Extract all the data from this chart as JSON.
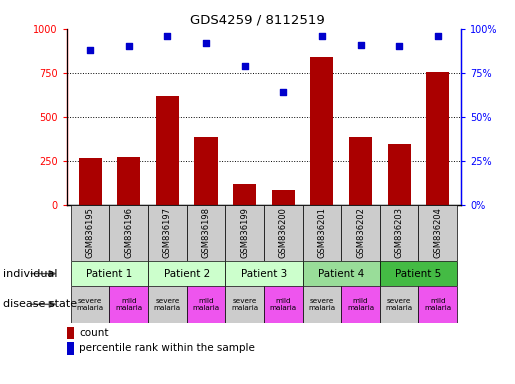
{
  "title": "GDS4259 / 8112519",
  "samples": [
    "GSM836195",
    "GSM836196",
    "GSM836197",
    "GSM836198",
    "GSM836199",
    "GSM836200",
    "GSM836201",
    "GSM836202",
    "GSM836203",
    "GSM836204"
  ],
  "bar_values": [
    270,
    275,
    620,
    390,
    120,
    85,
    840,
    390,
    345,
    755
  ],
  "percentile_values": [
    88,
    90,
    96,
    92,
    79,
    64,
    96,
    91,
    90,
    96
  ],
  "patients": [
    {
      "label": "Patient 1",
      "start": 0,
      "end": 2,
      "color": "#ccffcc"
    },
    {
      "label": "Patient 2",
      "start": 2,
      "end": 4,
      "color": "#ccffcc"
    },
    {
      "label": "Patient 3",
      "start": 4,
      "end": 6,
      "color": "#ccffcc"
    },
    {
      "label": "Patient 4",
      "start": 6,
      "end": 8,
      "color": "#99dd99"
    },
    {
      "label": "Patient 5",
      "start": 8,
      "end": 10,
      "color": "#44bb44"
    }
  ],
  "disease_states": [
    {
      "label": "severe\nmalaria",
      "col": 0,
      "color": "#cccccc"
    },
    {
      "label": "mild\nmalaria",
      "col": 1,
      "color": "#ee55ee"
    },
    {
      "label": "severe\nmalaria",
      "col": 2,
      "color": "#cccccc"
    },
    {
      "label": "mild\nmalaria",
      "col": 3,
      "color": "#ee55ee"
    },
    {
      "label": "severe\nmalaria",
      "col": 4,
      "color": "#cccccc"
    },
    {
      "label": "mild\nmalaria",
      "col": 5,
      "color": "#ee55ee"
    },
    {
      "label": "severe\nmalaria",
      "col": 6,
      "color": "#cccccc"
    },
    {
      "label": "mild\nmalaria",
      "col": 7,
      "color": "#ee55ee"
    },
    {
      "label": "severe\nmalaria",
      "col": 8,
      "color": "#cccccc"
    },
    {
      "label": "mild\nmalaria",
      "col": 9,
      "color": "#ee55ee"
    }
  ],
  "bar_color": "#aa0000",
  "dot_color": "#0000cc",
  "ylim_left": [
    0,
    1000
  ],
  "ylim_right": [
    0,
    100
  ],
  "yticks_left": [
    0,
    250,
    500,
    750,
    1000
  ],
  "yticks_right": [
    0,
    25,
    50,
    75,
    100
  ],
  "ytick_labels_left": [
    "0",
    "250",
    "500",
    "750",
    "1000"
  ],
  "ytick_labels_right": [
    "0%",
    "25%",
    "50%",
    "75%",
    "100%"
  ],
  "sample_row_color": "#cccccc",
  "individual_label": "individual",
  "disease_state_label": "disease state",
  "grid_lines": [
    250,
    500,
    750
  ]
}
